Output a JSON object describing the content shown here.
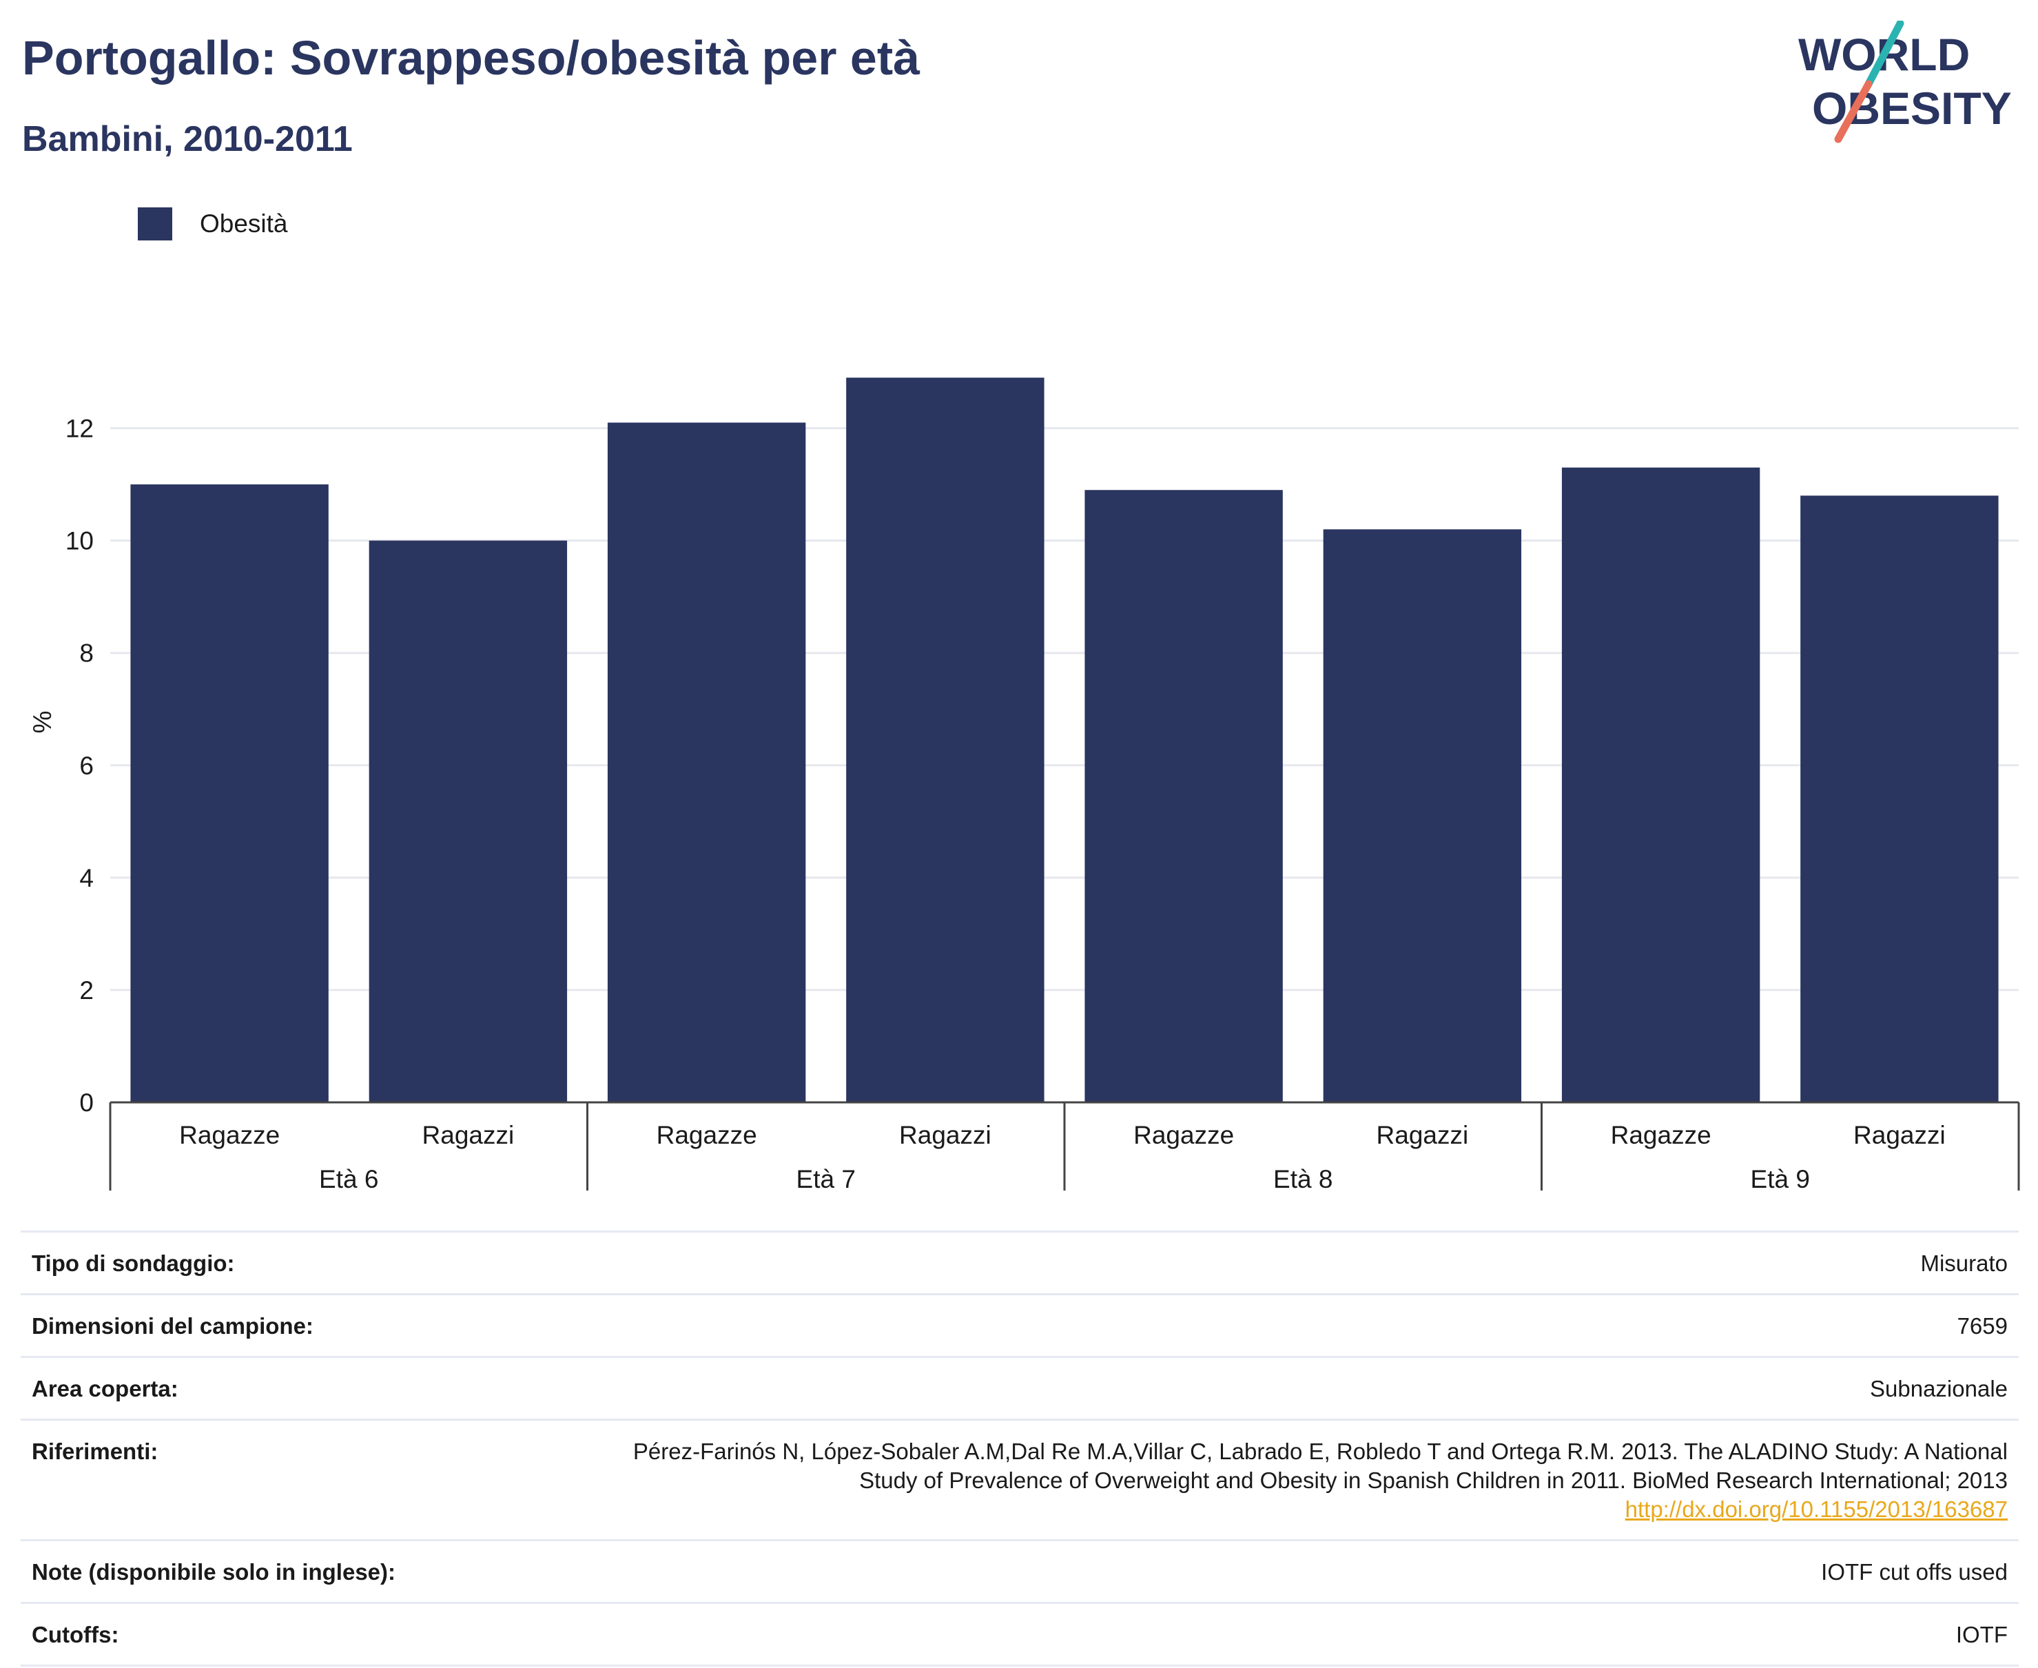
{
  "title": "Portogallo: Sovrappeso/obesità per età",
  "subtitle": "Bambini, 2010-2011",
  "logo": {
    "line1": "WORLD",
    "line2": "OBESITY"
  },
  "colors": {
    "bar": "#2a3560",
    "title": "#2a3560",
    "link": "#e8a81c",
    "logo_teal": "#2bb3b1",
    "logo_coral": "#e8705b"
  },
  "chart_data": {
    "type": "bar",
    "ylabel": "%",
    "ylim": [
      0,
      13
    ],
    "yticks": [
      0,
      2,
      4,
      6,
      8,
      10,
      12
    ],
    "grid": true,
    "legend_position": "top-left",
    "groups": [
      "Età 6",
      "Età 7",
      "Età 8",
      "Età 9"
    ],
    "categories": [
      "Ragazze",
      "Ragazzi",
      "Ragazze",
      "Ragazzi",
      "Ragazze",
      "Ragazzi",
      "Ragazze",
      "Ragazzi"
    ],
    "series": [
      {
        "name": "Obesità",
        "values": [
          11.0,
          10.0,
          12.1,
          12.9,
          10.9,
          10.2,
          11.3,
          10.8
        ]
      }
    ]
  },
  "info": {
    "survey_type": {
      "label": "Tipo di sondaggio:",
      "value": "Misurato"
    },
    "sample_size": {
      "label": "Dimensioni del campione:",
      "value": "7659"
    },
    "area": {
      "label": "Area coperta:",
      "value": "Subnazionale"
    },
    "references": {
      "label": "Riferimenti:",
      "line1": "Pérez-Farinós N, López-Sobaler A.M,Dal Re M.A,Villar C, Labrado E, Robledo T and Ortega R.M. 2013. The ALADINO Study: A National",
      "line2": "Study of Prevalence of Overweight and Obesity in Spanish Children in 2011. BioMed Research International; 2013",
      "link": "http://dx.doi.org/10.1155/2013/163687"
    },
    "notes": {
      "label": "Note (disponibile solo in inglese):",
      "value": "IOTF cut offs used"
    },
    "cutoffs": {
      "label": "Cutoffs:",
      "value": "IOTF"
    }
  }
}
